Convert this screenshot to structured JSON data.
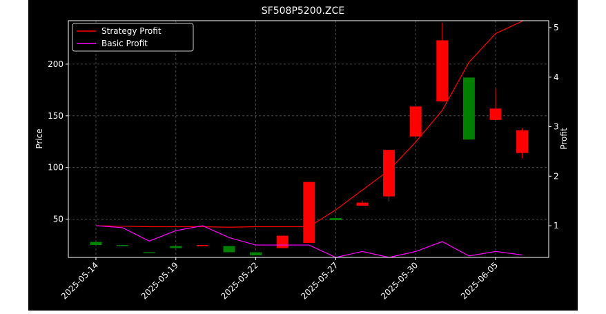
{
  "chart_data": {
    "type": "candlestick",
    "title": "SF508P5200.ZCE",
    "ylabel": "Price",
    "y2label": "Profit",
    "ylim": [
      13,
      242
    ],
    "y2lim": [
      0.36,
      5.14
    ],
    "yticks": [
      50,
      100,
      150,
      200
    ],
    "y2ticks": [
      1,
      2,
      3,
      4,
      5
    ],
    "xtick_labels": [
      "2025-05-14",
      "2025-05-19",
      "2025-05-22",
      "2025-05-27",
      "2025-05-30",
      "2025-06-05"
    ],
    "xtick_index": [
      0,
      3,
      6,
      9,
      12,
      15
    ],
    "grid": true,
    "legend_placement": "top-left",
    "up_color": "#ff0000",
    "down_color": "#008000",
    "candles": [
      {
        "open": 28,
        "close": 25,
        "high": 28,
        "low": 25
      },
      {
        "open": 25,
        "close": 24,
        "high": 25,
        "low": 24
      },
      {
        "open": 18,
        "close": 17,
        "high": 18,
        "low": 17
      },
      {
        "open": 24,
        "close": 22,
        "high": 24,
        "low": 22
      },
      {
        "open": 24,
        "close": 25,
        "high": 25,
        "low": 24
      },
      {
        "open": 24,
        "close": 18,
        "high": 24,
        "low": 18
      },
      {
        "open": 18,
        "close": 15,
        "high": 18,
        "low": 15
      },
      {
        "open": 22,
        "close": 34,
        "high": 34,
        "low": 22
      },
      {
        "open": 27,
        "close": 86,
        "high": 86,
        "low": 27
      },
      {
        "open": 51,
        "close": 49,
        "high": 51,
        "low": 49
      },
      {
        "open": 63,
        "close": 66,
        "high": 68,
        "low": 63
      },
      {
        "open": 72,
        "close": 117,
        "high": 117,
        "low": 67
      },
      {
        "open": 130,
        "close": 159,
        "high": 159,
        "low": 130
      },
      {
        "open": 164,
        "close": 223,
        "high": 240,
        "low": 164
      },
      {
        "open": 187,
        "close": 127,
        "high": 187,
        "low": 127
      },
      {
        "open": 146,
        "close": 157,
        "high": 176,
        "low": 146
      },
      {
        "open": 114,
        "close": 136,
        "high": 138,
        "low": 109
      }
    ],
    "series": [
      {
        "name": "Strategy Profit",
        "color": "#ff0000",
        "values": [
          1.0,
          0.99,
          0.98,
          0.98,
          0.98,
          0.97,
          0.98,
          0.98,
          0.98,
          1.32,
          1.72,
          2.12,
          2.69,
          3.33,
          4.3,
          4.88,
          5.13
        ]
      },
      {
        "name": "Basic Profit",
        "color": "#ff00ff",
        "values": [
          1.0,
          0.96,
          0.69,
          0.9,
          1.0,
          0.76,
          0.61,
          0.61,
          0.61,
          0.36,
          0.48,
          0.36,
          0.48,
          0.68,
          0.39,
          0.48,
          0.41
        ]
      }
    ]
  }
}
